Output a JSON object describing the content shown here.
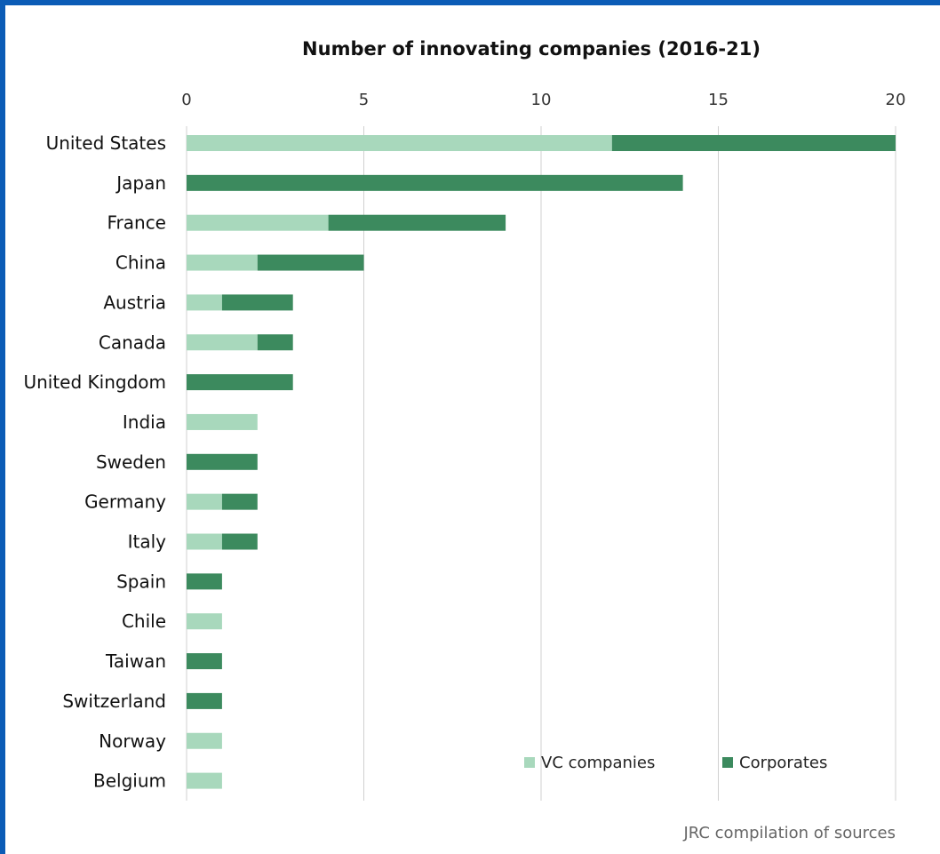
{
  "chart_data": {
    "type": "bar",
    "orientation": "horizontal",
    "stacked": true,
    "title": "Number of innovating companies (2016-21)",
    "categories": [
      "United States",
      "Japan",
      "France",
      "China",
      "Austria",
      "Canada",
      "United Kingdom",
      "India",
      "Sweden",
      "Germany",
      "Italy",
      "Spain",
      "Chile",
      "Taiwan",
      "Switzerland",
      "Norway",
      "Belgium"
    ],
    "series": [
      {
        "name": "VC companies",
        "color": "#a8d8bc",
        "values": [
          12,
          0,
          4,
          2,
          1,
          2,
          0,
          2,
          0,
          1,
          1,
          0,
          1,
          0,
          0,
          1,
          1
        ]
      },
      {
        "name": "Corporates",
        "color": "#3c8a5e",
        "values": [
          8,
          14,
          5,
          3,
          2,
          1,
          3,
          0,
          2,
          1,
          1,
          1,
          0,
          1,
          1,
          0,
          0
        ]
      }
    ],
    "xlim": [
      0,
      20
    ],
    "xticks": [
      0,
      5,
      10,
      15,
      20
    ],
    "xaxis_position": "top",
    "grid": true,
    "legend": "bottom-right"
  },
  "source": "JRC compilation of sources"
}
